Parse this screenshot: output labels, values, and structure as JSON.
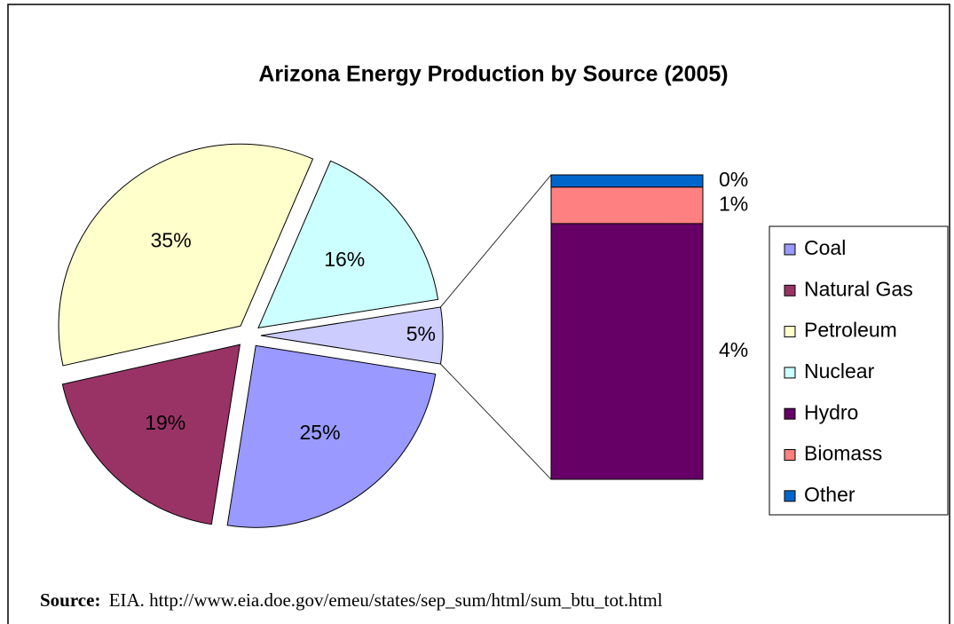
{
  "chart_data": {
    "type": "bar_of_pie",
    "title": "Arizona Energy Production by Source (2005)",
    "pie": {
      "categories": [
        "Coal",
        "Natural Gas",
        "Petroleum",
        "Nuclear",
        null
      ],
      "values": [
        25,
        19,
        35,
        16,
        5
      ],
      "value_labels": [
        "25%",
        "19%",
        "35%",
        "16%",
        "5%"
      ],
      "colors": [
        "#9999ff",
        "#993366",
        "#ffffcc",
        "#ccffff",
        "#ccccff"
      ]
    },
    "bar": {
      "categories": [
        "Hydro",
        "Biomass",
        "Other"
      ],
      "values": [
        4.2,
        0.6,
        0.2
      ],
      "value_labels": [
        "4%",
        "1%",
        "0%"
      ],
      "colors": [
        "#660066",
        "#ff8080",
        "#0066cc"
      ]
    },
    "source_label": "Source:",
    "source": "EIA. http://www.eia.doe.gov/emeu/states/sep_sum/html/sum_btu_tot.html"
  }
}
